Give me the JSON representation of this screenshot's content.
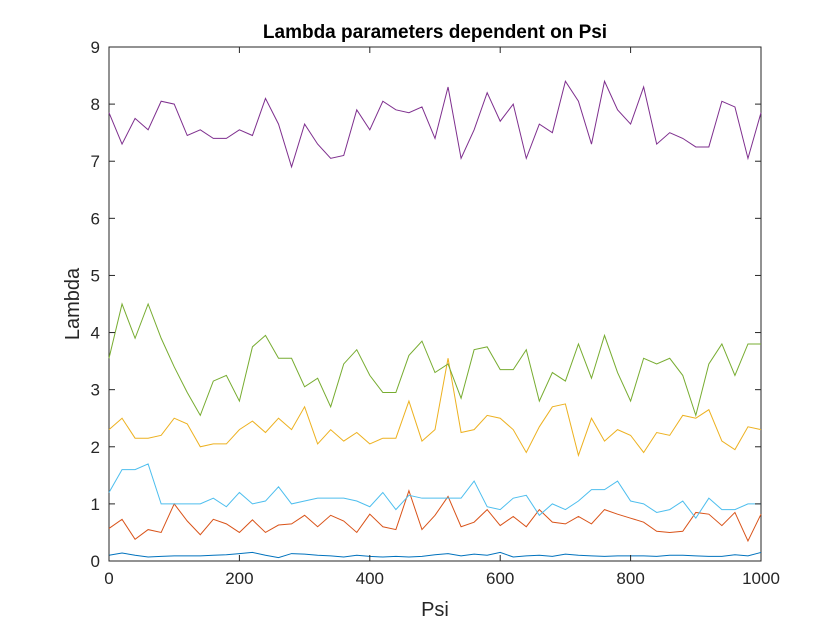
{
  "chart_data": {
    "type": "line",
    "title": "Lambda parameters dependent on Psi",
    "xlabel": "Psi",
    "ylabel": "Lambda",
    "xlim": [
      0,
      1000
    ],
    "ylim": [
      0,
      9
    ],
    "xticks": [
      "0",
      "200",
      "400",
      "600",
      "800",
      "1000"
    ],
    "yticks": [
      "0",
      "1",
      "2",
      "3",
      "4",
      "5",
      "6",
      "7",
      "8",
      "9"
    ],
    "grid": false,
    "legend": "none",
    "x": [
      0,
      20,
      40,
      60,
      80,
      100,
      120,
      140,
      160,
      180,
      200,
      220,
      240,
      260,
      280,
      300,
      320,
      340,
      360,
      380,
      400,
      420,
      440,
      460,
      480,
      500,
      520,
      540,
      560,
      580,
      600,
      620,
      640,
      660,
      680,
      700,
      720,
      740,
      760,
      780,
      800,
      820,
      840,
      860,
      880,
      900,
      920,
      940,
      960,
      980,
      1000
    ],
    "series": [
      {
        "color": "#0072BD",
        "values": [
          0.1,
          0.14,
          0.1,
          0.07,
          0.08,
          0.09,
          0.09,
          0.09,
          0.1,
          0.11,
          0.13,
          0.15,
          0.1,
          0.06,
          0.13,
          0.12,
          0.1,
          0.09,
          0.07,
          0.1,
          0.08,
          0.07,
          0.08,
          0.07,
          0.08,
          0.11,
          0.13,
          0.09,
          0.12,
          0.1,
          0.15,
          0.07,
          0.09,
          0.1,
          0.08,
          0.12,
          0.1,
          0.09,
          0.08,
          0.09,
          0.09,
          0.09,
          0.08,
          0.1,
          0.1,
          0.09,
          0.08,
          0.08,
          0.11,
          0.09,
          0.15
        ]
      },
      {
        "color": "#D95319",
        "values": [
          0.57,
          0.73,
          0.38,
          0.55,
          0.5,
          1.0,
          0.7,
          0.46,
          0.73,
          0.65,
          0.5,
          0.72,
          0.5,
          0.63,
          0.65,
          0.8,
          0.6,
          0.8,
          0.7,
          0.5,
          0.82,
          0.6,
          0.55,
          1.23,
          0.55,
          0.8,
          1.13,
          0.6,
          0.68,
          0.9,
          0.62,
          0.78,
          0.6,
          0.9,
          0.68,
          0.65,
          0.78,
          0.65,
          0.9,
          0.82,
          0.75,
          0.68,
          0.52,
          0.5,
          0.52,
          0.85,
          0.82,
          0.62,
          0.85,
          0.35,
          0.82
        ]
      },
      {
        "color": "#EDB120",
        "values": [
          2.3,
          2.5,
          2.15,
          2.15,
          2.2,
          2.5,
          2.4,
          2.0,
          2.05,
          2.05,
          2.3,
          2.45,
          2.25,
          2.5,
          2.3,
          2.7,
          2.05,
          2.3,
          2.1,
          2.25,
          2.05,
          2.15,
          2.15,
          2.8,
          2.1,
          2.3,
          3.55,
          2.25,
          2.3,
          2.55,
          2.5,
          2.3,
          1.9,
          2.35,
          2.7,
          2.75,
          1.85,
          2.5,
          2.1,
          2.3,
          2.2,
          1.9,
          2.25,
          2.2,
          2.55,
          2.5,
          2.65,
          2.1,
          1.95,
          2.35,
          2.3
        ]
      },
      {
        "color": "#7E2F8E",
        "values": [
          7.85,
          7.3,
          7.75,
          7.55,
          8.05,
          8.0,
          7.45,
          7.55,
          7.4,
          7.4,
          7.55,
          7.45,
          8.1,
          7.65,
          6.9,
          7.65,
          7.3,
          7.05,
          7.1,
          7.9,
          7.55,
          8.05,
          7.9,
          7.85,
          7.95,
          7.4,
          8.3,
          7.05,
          7.55,
          8.2,
          7.7,
          8.0,
          7.05,
          7.65,
          7.5,
          8.4,
          8.05,
          7.3,
          8.4,
          7.9,
          7.65,
          8.3,
          7.3,
          7.5,
          7.4,
          7.25,
          7.25,
          8.05,
          7.95,
          7.05,
          7.85
        ]
      },
      {
        "color": "#77AC30",
        "values": [
          3.55,
          4.5,
          3.9,
          4.5,
          3.9,
          3.4,
          2.95,
          2.55,
          3.15,
          3.25,
          2.8,
          3.75,
          3.95,
          3.55,
          3.55,
          3.05,
          3.2,
          2.7,
          3.45,
          3.7,
          3.25,
          2.95,
          2.95,
          3.6,
          3.85,
          3.3,
          3.45,
          2.85,
          3.7,
          3.75,
          3.35,
          3.35,
          3.7,
          2.8,
          3.3,
          3.15,
          3.8,
          3.2,
          3.95,
          3.3,
          2.8,
          3.55,
          3.45,
          3.55,
          3.25,
          2.55,
          3.45,
          3.8,
          3.25,
          3.8,
          3.8
        ]
      },
      {
        "color": "#4DBEEE",
        "values": [
          1.2,
          1.6,
          1.6,
          1.7,
          1.0,
          1.0,
          1.0,
          1.0,
          1.1,
          0.95,
          1.2,
          1.0,
          1.05,
          1.3,
          1.0,
          1.05,
          1.1,
          1.1,
          1.1,
          1.05,
          0.95,
          1.2,
          0.9,
          1.15,
          1.1,
          1.1,
          1.1,
          1.1,
          1.4,
          0.95,
          0.9,
          1.1,
          1.15,
          0.8,
          1.0,
          0.9,
          1.05,
          1.25,
          1.25,
          1.4,
          1.05,
          1.0,
          0.85,
          0.9,
          1.05,
          0.75,
          1.1,
          0.9,
          0.9,
          1.0,
          1.0
        ]
      }
    ]
  }
}
